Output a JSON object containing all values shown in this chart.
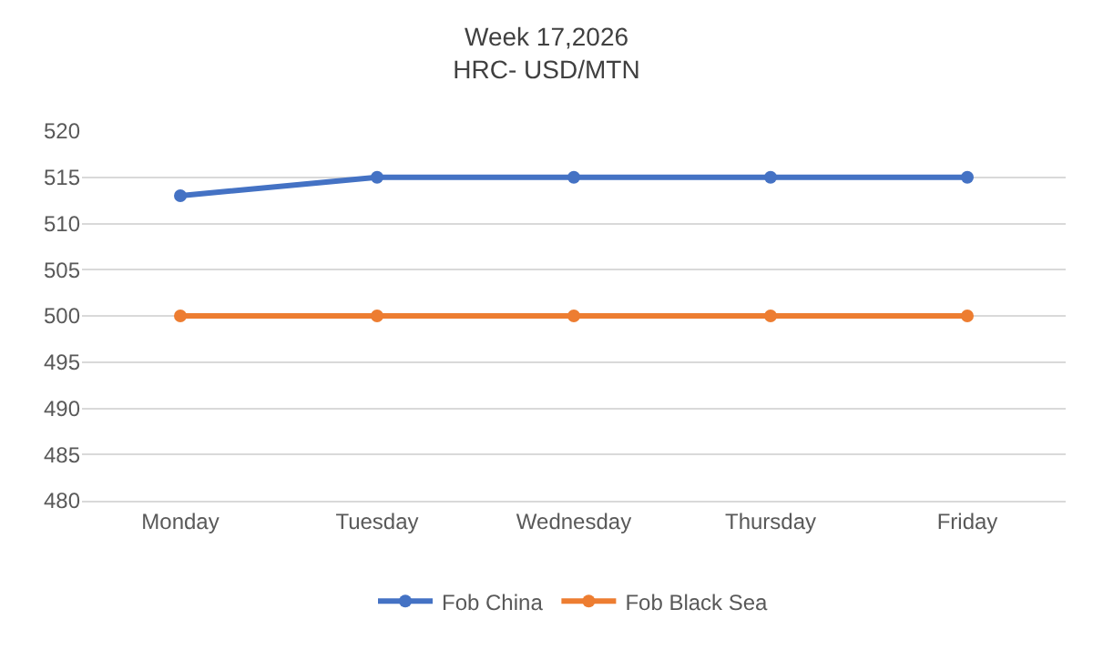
{
  "chart_data": {
    "type": "line",
    "title": "Week 17,2026",
    "subtitle": "HRC- USD/MTN",
    "categories": [
      "Monday",
      "Tuesday",
      "Wednesday",
      "Thursday",
      "Friday"
    ],
    "series": [
      {
        "name": "Fob China",
        "color": "#4472c4",
        "values": [
          513,
          515,
          515,
          515,
          515
        ]
      },
      {
        "name": "Fob Black Sea",
        "color": "#ed7d31",
        "values": [
          500,
          500,
          500,
          500,
          500
        ]
      }
    ],
    "ylim": [
      480,
      520
    ],
    "yticks": [
      480,
      485,
      490,
      495,
      500,
      505,
      510,
      515,
      520
    ],
    "grid": "y",
    "legend": "bottom",
    "marker": "circle",
    "line_style": "solid"
  }
}
